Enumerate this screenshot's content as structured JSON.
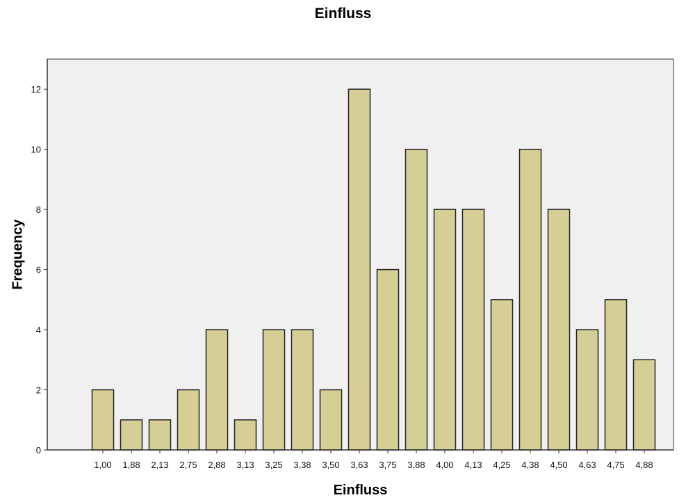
{
  "chart_data": {
    "type": "bar",
    "title": "Einfluss",
    "xlabel": "Einfluss",
    "ylabel": "Frequency",
    "categories": [
      "1,00",
      "1,88",
      "2,13",
      "2,75",
      "2,88",
      "3,13",
      "3,25",
      "3,38",
      "3,50",
      "3,63",
      "3,75",
      "3,88",
      "4,00",
      "4,13",
      "4,25",
      "4,38",
      "4,50",
      "4,63",
      "4,75",
      "4,88"
    ],
    "values": [
      2,
      1,
      1,
      2,
      4,
      1,
      4,
      4,
      2,
      12,
      6,
      10,
      8,
      8,
      5,
      10,
      8,
      4,
      5,
      3
    ],
    "ylim": [
      0,
      13
    ],
    "yticks": [
      0,
      2,
      4,
      6,
      8,
      10,
      12
    ],
    "grid": false,
    "colors": {
      "bar_fill": "#d5cf96",
      "bar_stroke": "#222222",
      "plot_background": "#f0f0f0",
      "axis": "#333333"
    }
  }
}
